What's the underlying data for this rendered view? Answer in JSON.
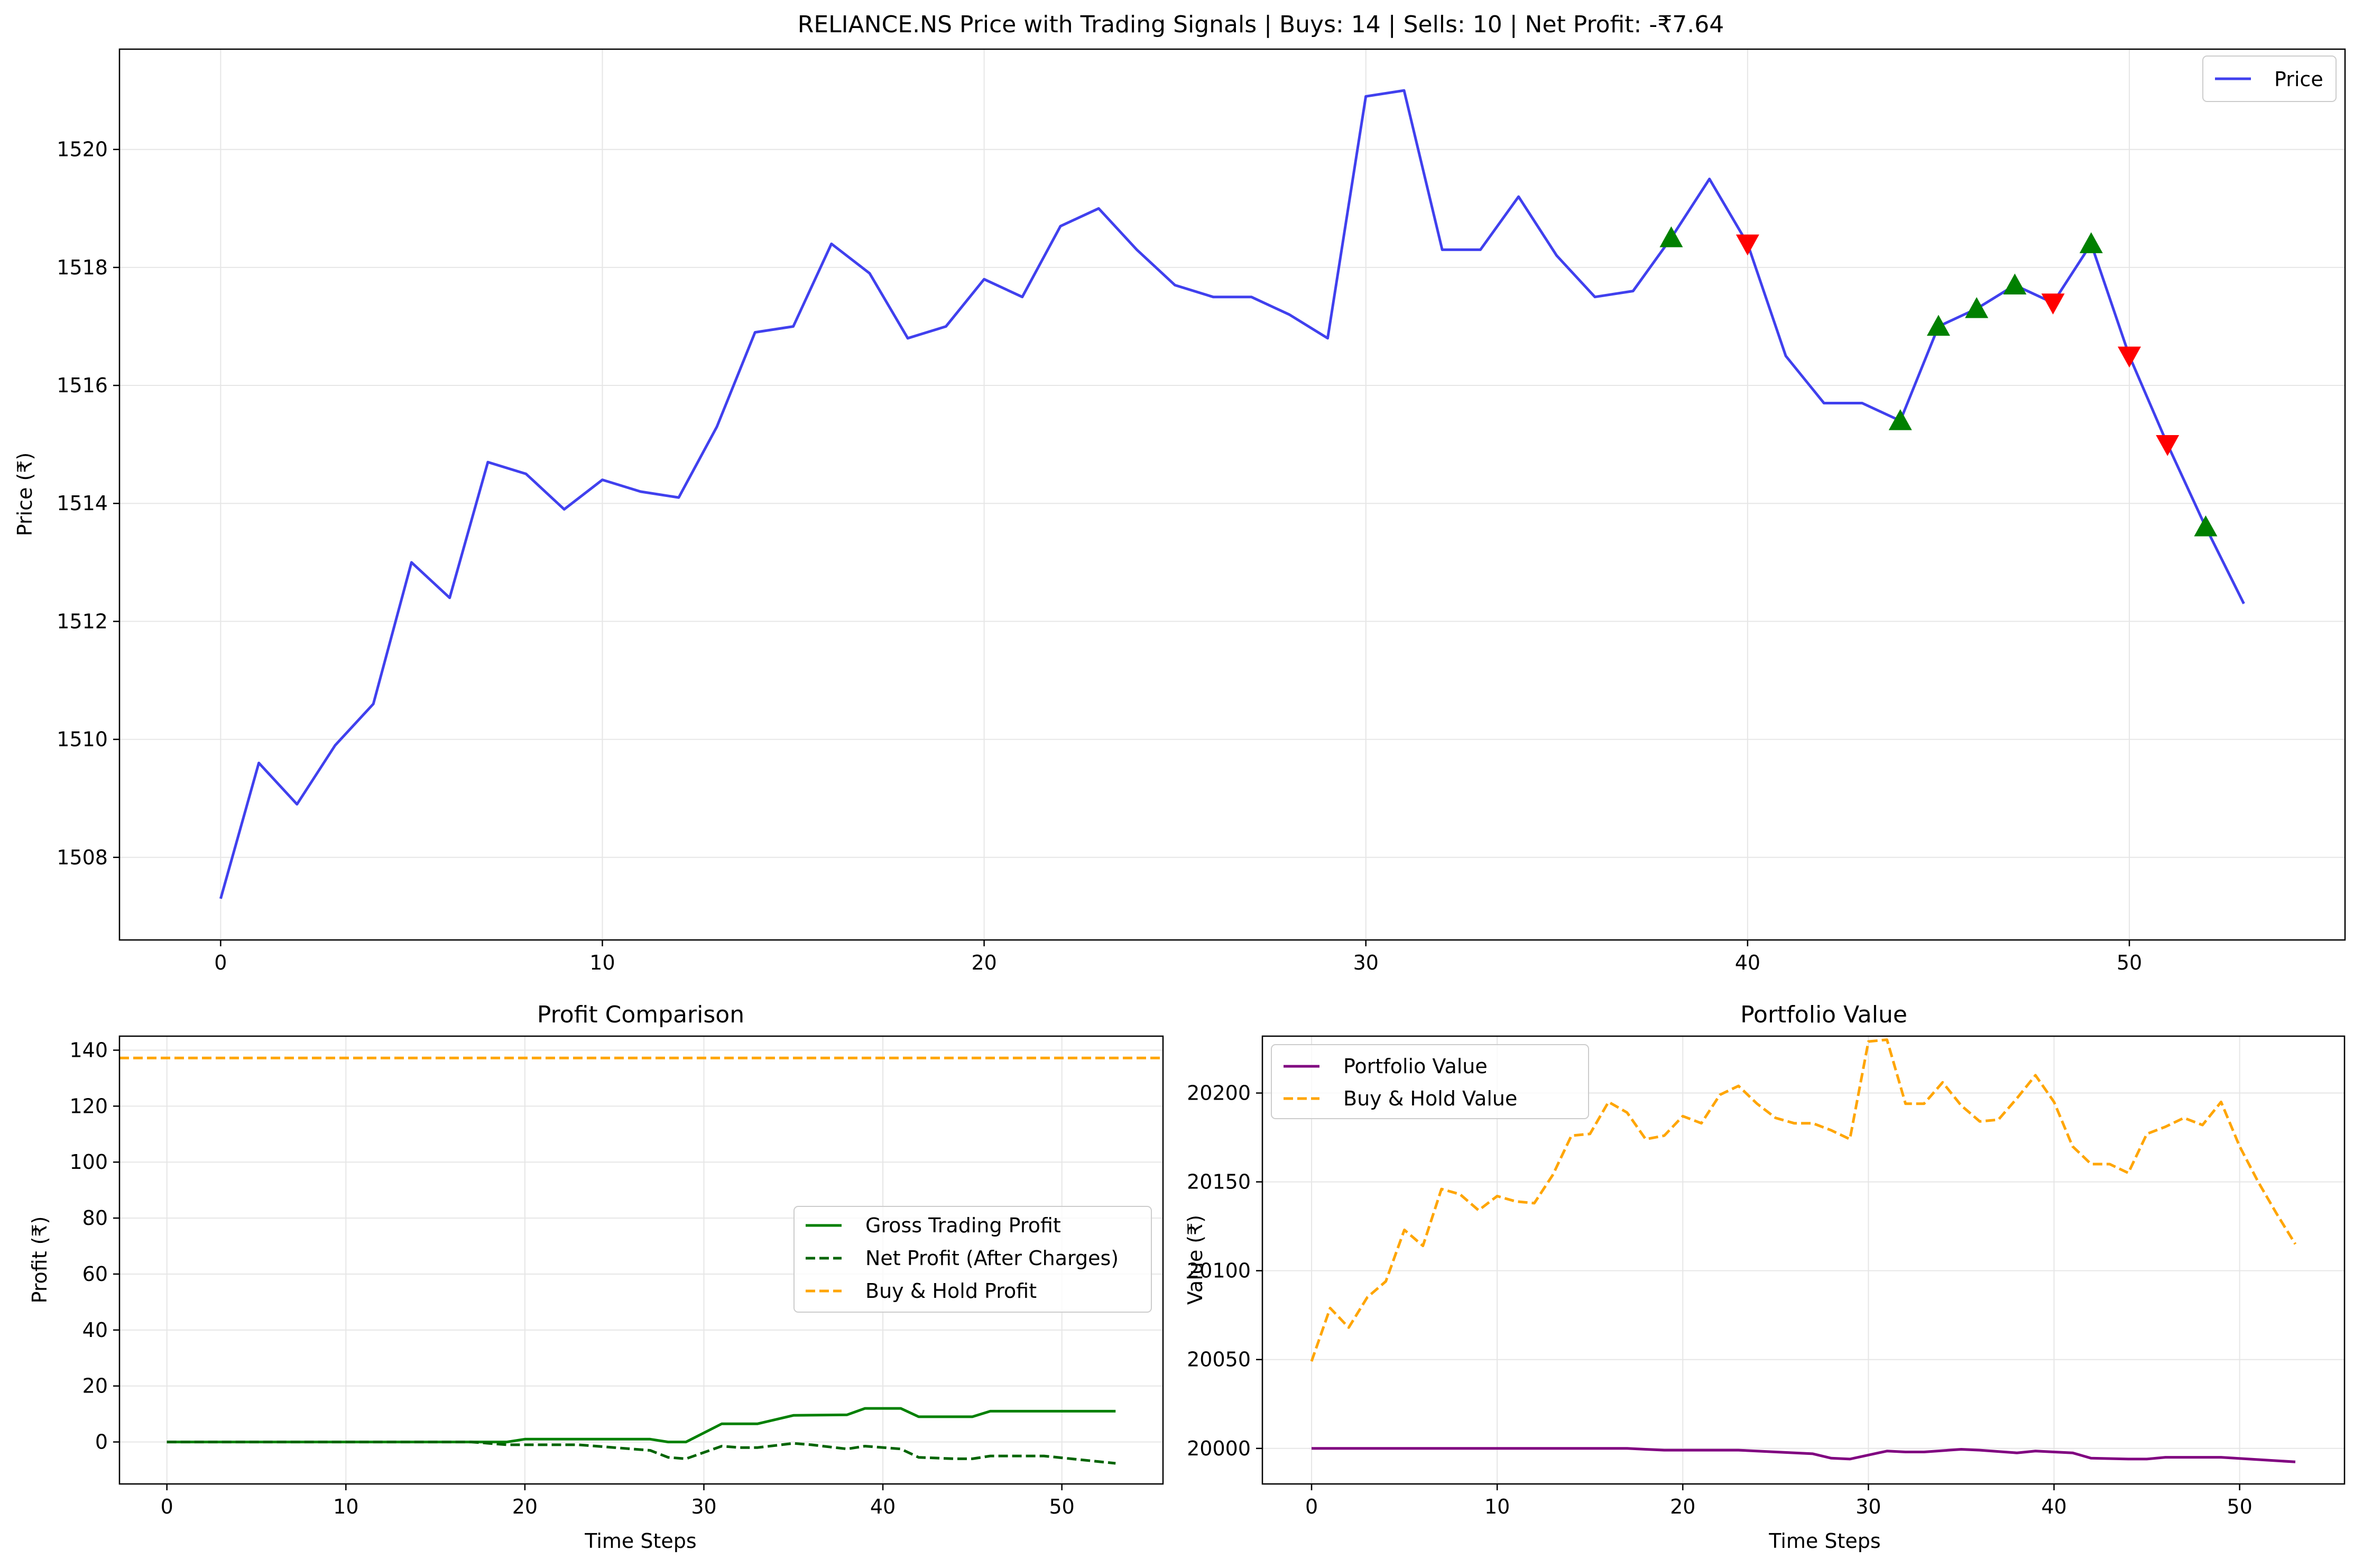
{
  "chart_data": [
    {
      "type": "line",
      "title": "RELIANCE.NS Price with Trading Signals | Buys: 14 | Sells: 10 | Net Profit: -₹7.64",
      "xlabel": "",
      "ylabel": "Price (₹)",
      "xlim": [
        -2.65,
        55.65
      ],
      "ylim": [
        1506.6,
        1521.7
      ],
      "xticks": [
        0,
        10,
        20,
        30,
        40,
        50
      ],
      "yticks": [
        1508,
        1510,
        1512,
        1514,
        1516,
        1518,
        1520
      ],
      "grid": true,
      "legend_position": "top-right",
      "series": [
        {
          "name": "Price",
          "color": "#4040ee",
          "style": "solid",
          "x": [
            0,
            1,
            2,
            3,
            4,
            5,
            6,
            7,
            8,
            9,
            10,
            11,
            12,
            13,
            14,
            15,
            16,
            17,
            18,
            19,
            20,
            21,
            22,
            23,
            24,
            25,
            26,
            27,
            28,
            29,
            30,
            31,
            32,
            33,
            34,
            35,
            36,
            37,
            38,
            39,
            40,
            41,
            42,
            43,
            44,
            45,
            46,
            47,
            48,
            49,
            50,
            51,
            52,
            53
          ],
          "values": [
            1507.3,
            1509.6,
            1508.9,
            1509.9,
            1510.6,
            1513.0,
            1512.4,
            1514.7,
            1514.5,
            1513.9,
            1514.4,
            1514.2,
            1514.1,
            1515.3,
            1516.9,
            1517.0,
            1518.4,
            1517.9,
            1516.8,
            1517.0,
            1517.8,
            1517.5,
            1518.7,
            1519.0,
            1518.3,
            1517.7,
            1517.5,
            1517.5,
            1517.2,
            1516.8,
            1520.9,
            1521.0,
            1518.3,
            1518.3,
            1519.2,
            1518.2,
            1517.5,
            1517.6,
            1518.5,
            1519.5,
            1518.4,
            1516.5,
            1515.7,
            1515.7,
            1515.4,
            1517.0,
            1517.3,
            1517.7,
            1517.4,
            1518.4,
            1516.5,
            1515.0,
            1513.6,
            1512.3
          ]
        }
      ],
      "markers": {
        "buy": {
          "color": "#008000",
          "shape": "triangle-up",
          "x": [
            38,
            44,
            45,
            46,
            47,
            49,
            52
          ],
          "values": [
            1518.5,
            1515.4,
            1517.0,
            1517.3,
            1517.7,
            1518.4,
            1513.6
          ]
        },
        "sell": {
          "color": "#ff0000",
          "shape": "triangle-down",
          "x": [
            40,
            48,
            50,
            51
          ],
          "values": [
            1518.4,
            1517.4,
            1516.5,
            1515.0
          ]
        }
      }
    },
    {
      "type": "line",
      "title": "Profit Comparison",
      "xlabel": "Time Steps",
      "ylabel": "Profit (₹)",
      "xlim": [
        -2.65,
        55.65
      ],
      "ylim": [
        -15,
        145
      ],
      "xticks": [
        0,
        10,
        20,
        30,
        40,
        50
      ],
      "yticks": [
        0,
        20,
        40,
        60,
        80,
        100,
        120,
        140
      ],
      "grid": true,
      "legend_position": "center-right",
      "series": [
        {
          "name": "Gross Trading Profit",
          "color": "#008000",
          "style": "solid",
          "x": [
            0,
            17,
            18,
            19,
            20,
            27,
            28,
            29,
            31,
            33,
            35,
            38,
            39,
            41,
            42,
            45,
            46,
            53
          ],
          "values": [
            0,
            0,
            0,
            0,
            1,
            1,
            0,
            0,
            6.5,
            6.5,
            9.5,
            9.7,
            12,
            12,
            9,
            9,
            11,
            11
          ]
        },
        {
          "name": "Net Profit (After Charges)",
          "color": "#006400",
          "style": "dashed",
          "x": [
            0,
            17,
            18,
            19,
            20,
            23,
            25,
            27,
            28,
            29,
            31,
            32,
            33,
            35,
            36,
            38,
            39,
            41,
            42,
            44,
            45,
            46,
            47,
            49,
            53
          ],
          "values": [
            0,
            0,
            -0.5,
            -1,
            -1,
            -1,
            -2,
            -3,
            -5.5,
            -6,
            -1.5,
            -2,
            -2,
            -0.5,
            -1,
            -2.5,
            -1.5,
            -2.5,
            -5.5,
            -6,
            -6,
            -5,
            -5,
            -5,
            -7.64
          ]
        },
        {
          "name": "Buy & Hold Profit",
          "color": "#ffa500",
          "style": "dashed",
          "x": [
            -2.65,
            55.65
          ],
          "values": [
            137.2,
            137.2
          ]
        }
      ]
    },
    {
      "type": "line",
      "title": "Portfolio Value",
      "xlabel": "Time Steps",
      "ylabel": "Value (₹)",
      "xlim": [
        -2.65,
        55.65
      ],
      "ylim": [
        19980,
        20232
      ],
      "xticks": [
        0,
        10,
        20,
        30,
        40,
        50
      ],
      "yticks": [
        20000,
        20050,
        20100,
        20150,
        20200
      ],
      "grid": true,
      "legend_position": "top-left",
      "series": [
        {
          "name": "Portfolio Value",
          "color": "#800080",
          "style": "solid",
          "x": [
            0,
            17,
            18,
            19,
            20,
            23,
            25,
            27,
            28,
            29,
            31,
            32,
            33,
            35,
            36,
            38,
            39,
            41,
            42,
            44,
            45,
            46,
            47,
            49,
            53
          ],
          "values": [
            20000,
            20000,
            19999.5,
            19999,
            19999,
            19999,
            19998,
            19997,
            19994.5,
            19994,
            19998.5,
            19998,
            19998,
            19999.5,
            19999,
            19997.5,
            19998.5,
            19997.5,
            19994.5,
            19994,
            19994,
            19995,
            19995,
            19995,
            19992.4
          ]
        },
        {
          "name": "Buy & Hold Value",
          "color": "#ffa500",
          "style": "dashed",
          "x": [
            0,
            1,
            2,
            3,
            4,
            5,
            6,
            7,
            8,
            9,
            10,
            11,
            12,
            13,
            14,
            15,
            16,
            17,
            18,
            19,
            20,
            21,
            22,
            23,
            24,
            25,
            26,
            27,
            28,
            29,
            30,
            31,
            32,
            33,
            34,
            35,
            36,
            37,
            38,
            39,
            40,
            41,
            42,
            43,
            44,
            45,
            46,
            47,
            48,
            49,
            50,
            51,
            52,
            53
          ],
          "values": [
            20049,
            20079,
            20068,
            20085,
            20094,
            20123,
            20114,
            20146,
            20143,
            20134,
            20142,
            20139,
            20138,
            20154,
            20176,
            20177,
            20195,
            20189,
            20174,
            20176,
            20187,
            20183,
            20199,
            20204,
            20194,
            20186,
            20183,
            20183,
            20179,
            20174,
            20229,
            20230,
            20194,
            20194,
            20206,
            20193,
            20184,
            20185,
            20197,
            20210,
            20195,
            20170,
            20160,
            20160,
            20155,
            20177,
            20181,
            20186,
            20182,
            20195,
            20170,
            20150,
            20132,
            20115
          ]
        }
      ]
    }
  ]
}
